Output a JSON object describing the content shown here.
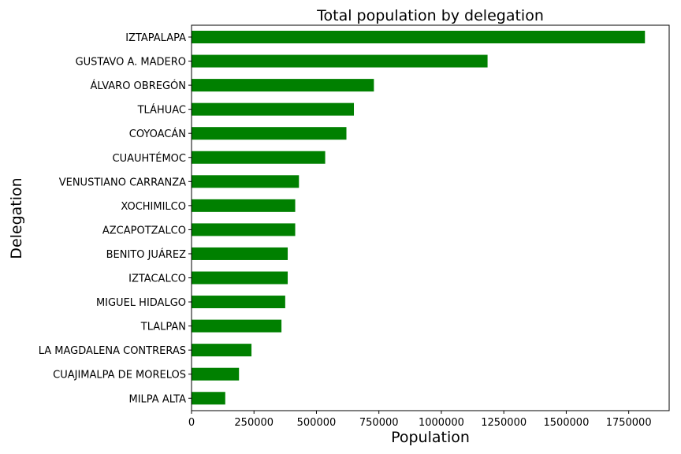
{
  "chart_data": {
    "type": "bar",
    "orientation": "horizontal",
    "title": "Total population by delegation",
    "xlabel": "Population",
    "ylabel": "Delegation",
    "bar_color": "#008000",
    "xlim": [
      0,
      1912000
    ],
    "xticks": [
      0,
      250000,
      500000,
      750000,
      1000000,
      1250000,
      1500000,
      1750000
    ],
    "xtick_labels": [
      "0",
      "250000",
      "500000",
      "750000",
      "1000000",
      "1250000",
      "1500000",
      "1750000"
    ],
    "grid": false,
    "categories": [
      "IZTAPALAPA",
      "GUSTAVO A. MADERO",
      "ÁLVARO OBREGÓN",
      "TLÁHUAC",
      "COYOACÁN",
      "CUAUHTÉMOC",
      "VENUSTIANO CARRANZA",
      "XOCHIMILCO",
      "AZCAPOTZALCO",
      "BENITO JUÁREZ",
      "IZTACALCO",
      "MIGUEL HIDALGO",
      "TLALPAN",
      "LA MAGDALENA CONTRERAS",
      "CUAJIMALPA DE MORELOS",
      "MILPA ALTA"
    ],
    "values": [
      1815000,
      1185000,
      730000,
      650000,
      620000,
      535000,
      430000,
      415000,
      415000,
      385000,
      385000,
      375000,
      360000,
      240000,
      190000,
      135000
    ]
  }
}
